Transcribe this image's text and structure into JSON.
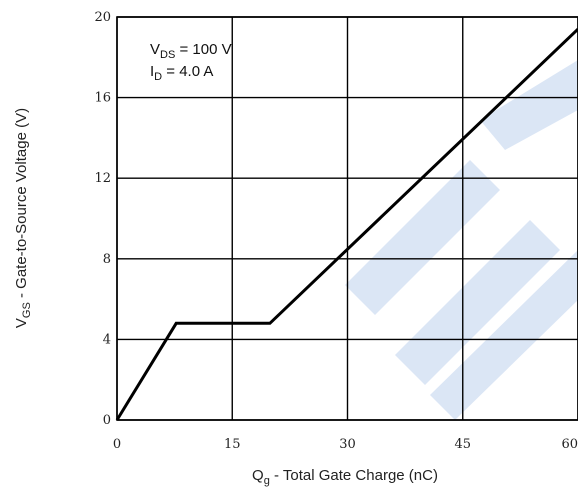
{
  "chart_data": {
    "type": "line",
    "title": "",
    "xlabel": {
      "main": "Q",
      "sub": "g",
      "rest": " - Total Gate Charge (nC)"
    },
    "ylabel": {
      "main": "V",
      "sub": "GS",
      "rest": "  - Gate-to-Source Voltage (V)"
    },
    "xlim": [
      0,
      60
    ],
    "ylim": [
      0,
      20
    ],
    "xticks": [
      0,
      15,
      30,
      45,
      60
    ],
    "yticks": [
      0,
      4,
      8,
      12,
      16,
      20
    ],
    "xtick_labels": [
      "0",
      "15",
      "30",
      "45",
      "60"
    ],
    "ytick_labels": [
      "0",
      "4",
      "8",
      "12",
      "16",
      "20"
    ],
    "grid": true,
    "series": [
      {
        "x": [
          0,
          7.7,
          19.9,
          60
        ],
        "y": [
          0,
          4.8,
          4.8,
          19.4
        ],
        "color": "#000000"
      }
    ],
    "annotations": [
      {
        "main": "V",
        "sub": "DS",
        "rest": " = 100 V"
      },
      {
        "main": "I",
        "sub": "D",
        "rest": " = 4.0 A"
      }
    ],
    "watermark_color": "#dbe6f5"
  }
}
